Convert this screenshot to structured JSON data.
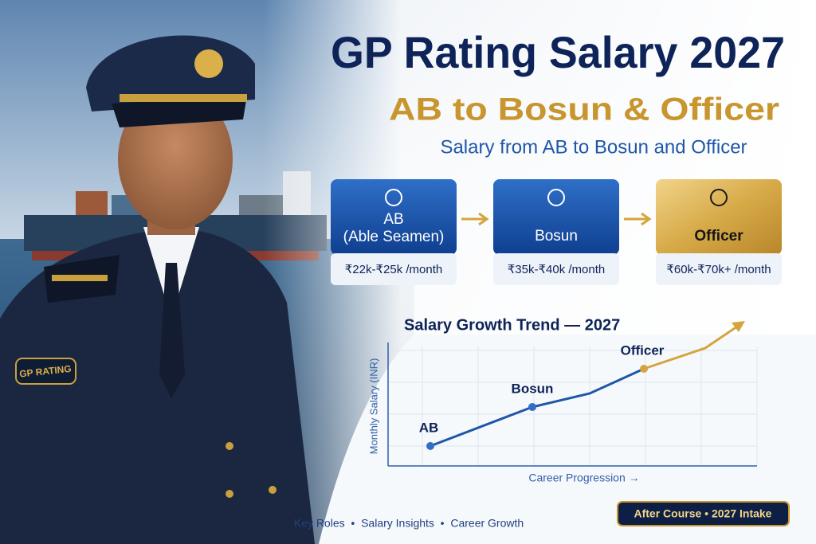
{
  "header": {
    "title": "GP Rating Salary 2027",
    "subtitle": "AB to Bosun & Officer",
    "tagline": "Salary from AB to Bosun and Officer"
  },
  "photo": {
    "shoulder_patch": "GP RATING"
  },
  "cards": [
    {
      "lines": [
        "AB",
        "(Able Seamen)"
      ],
      "salary": "₹22k-₹25k /month"
    },
    {
      "lines": [
        "Bosun"
      ],
      "salary": "₹35k-₹40k /month"
    },
    {
      "lines": [
        "Officer"
      ],
      "salary": "₹60k-₹70k+ /month"
    }
  ],
  "trend": {
    "title": "Salary Growth Trend — 2027",
    "y_label": "Monthly Salary (INR)",
    "x_label": "Career Progression →",
    "points": [
      "AB",
      "Bosun",
      "Officer"
    ]
  },
  "footer": {
    "topics": "Key Roles  •  Salary Insights  •  Career Growth",
    "badge": "After Course • 2027 Intake"
  }
}
